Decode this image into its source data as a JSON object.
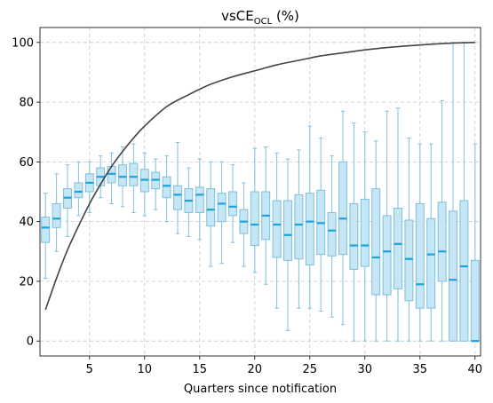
{
  "chart_data": {
    "type": "box",
    "title_main": "vsCE",
    "title_sub": "OCL",
    "title_unit": " (%)",
    "xlabel": "Quarters since notification",
    "ylabel": "",
    "xlim": [
      0.5,
      40.5
    ],
    "ylim": [
      -5,
      105
    ],
    "xticks": [
      5,
      10,
      15,
      20,
      25,
      30,
      35,
      40
    ],
    "yticks": [
      0,
      20,
      40,
      60,
      80,
      100
    ],
    "grid": true,
    "colors": {
      "box_fill": "#c5e6f5",
      "box_edge": "#7fbfdc",
      "median": "#1aa3e0",
      "curve": "#444444",
      "grid": "#c8c8c8"
    },
    "boxes": [
      {
        "x": 1,
        "whislo": 21,
        "q1": 33,
        "med": 38,
        "q3": 41.5,
        "whishi": 49.5
      },
      {
        "x": 2,
        "whislo": 30,
        "q1": 38,
        "med": 41,
        "q3": 46,
        "whishi": 56
      },
      {
        "x": 3,
        "whislo": 35,
        "q1": 44.5,
        "med": 48,
        "q3": 51,
        "whishi": 59
      },
      {
        "x": 4,
        "whislo": 42,
        "q1": 48,
        "med": 50,
        "q3": 53,
        "whishi": 60
      },
      {
        "x": 5,
        "whislo": 43,
        "q1": 50,
        "med": 53,
        "q3": 56,
        "whishi": 60
      },
      {
        "x": 6,
        "whislo": 48,
        "q1": 52,
        "med": 55,
        "q3": 58,
        "whishi": 62
      },
      {
        "x": 7,
        "whislo": 46,
        "q1": 53,
        "med": 56,
        "q3": 58.5,
        "whishi": 63
      },
      {
        "x": 8,
        "whislo": 45,
        "q1": 52,
        "med": 55,
        "q3": 59,
        "whishi": 65
      },
      {
        "x": 9,
        "whislo": 43,
        "q1": 52,
        "med": 55,
        "q3": 59.5,
        "whishi": 66
      },
      {
        "x": 10,
        "whislo": 42,
        "q1": 50,
        "med": 54,
        "q3": 57.5,
        "whishi": 63
      },
      {
        "x": 11,
        "whislo": 44,
        "q1": 51,
        "med": 54,
        "q3": 56.5,
        "whishi": 61
      },
      {
        "x": 12,
        "whislo": 40,
        "q1": 48,
        "med": 52,
        "q3": 55,
        "whishi": 62
      },
      {
        "x": 13,
        "whislo": 36,
        "q1": 44,
        "med": 49,
        "q3": 52,
        "whishi": 66.5
      },
      {
        "x": 14,
        "whislo": 35,
        "q1": 43,
        "med": 47,
        "q3": 51,
        "whishi": 58
      },
      {
        "x": 15,
        "whislo": 34,
        "q1": 43,
        "med": 49,
        "q3": 51.5,
        "whishi": 61
      },
      {
        "x": 16,
        "whislo": 25,
        "q1": 38.5,
        "med": 44,
        "q3": 51,
        "whishi": 60
      },
      {
        "x": 17,
        "whislo": 26,
        "q1": 40,
        "med": 46,
        "q3": 49.5,
        "whishi": 60
      },
      {
        "x": 18,
        "whislo": 33,
        "q1": 42,
        "med": 45,
        "q3": 50,
        "whishi": 59
      },
      {
        "x": 19,
        "whislo": 25,
        "q1": 36,
        "med": 40,
        "q3": 44,
        "whishi": 53
      },
      {
        "x": 20,
        "whislo": 23,
        "q1": 32,
        "med": 39,
        "q3": 50,
        "whishi": 64.5
      },
      {
        "x": 21,
        "whislo": 19,
        "q1": 34,
        "med": 42,
        "q3": 50,
        "whishi": 65
      },
      {
        "x": 22,
        "whislo": 11,
        "q1": 28,
        "med": 39,
        "q3": 47,
        "whishi": 63
      },
      {
        "x": 23,
        "whislo": 3.5,
        "q1": 27,
        "med": 35.5,
        "q3": 47,
        "whishi": 61
      },
      {
        "x": 24,
        "whislo": 11,
        "q1": 27.5,
        "med": 39,
        "q3": 49,
        "whishi": 64
      },
      {
        "x": 25,
        "whislo": 11,
        "q1": 25.5,
        "med": 40,
        "q3": 49.5,
        "whishi": 72
      },
      {
        "x": 26,
        "whislo": 10,
        "q1": 29,
        "med": 39.5,
        "q3": 50.5,
        "whishi": 68
      },
      {
        "x": 27,
        "whislo": 8,
        "q1": 28.5,
        "med": 37,
        "q3": 43,
        "whishi": 62
      },
      {
        "x": 28,
        "whislo": 5.5,
        "q1": 29,
        "med": 41,
        "q3": 60,
        "whishi": 77
      },
      {
        "x": 29,
        "whislo": 0,
        "q1": 24,
        "med": 32,
        "q3": 46,
        "whishi": 73
      },
      {
        "x": 30,
        "whislo": 0,
        "q1": 25,
        "med": 32,
        "q3": 47.5,
        "whishi": 70
      },
      {
        "x": 31,
        "whislo": 0,
        "q1": 15.5,
        "med": 28,
        "q3": 51,
        "whishi": 67
      },
      {
        "x": 32,
        "whislo": 0,
        "q1": 15.5,
        "med": 30,
        "q3": 42,
        "whishi": 77
      },
      {
        "x": 33,
        "whislo": 0,
        "q1": 17.5,
        "med": 32.5,
        "q3": 44.5,
        "whishi": 78
      },
      {
        "x": 34,
        "whislo": 0,
        "q1": 13.5,
        "med": 27.5,
        "q3": 40.5,
        "whishi": 68
      },
      {
        "x": 35,
        "whislo": 0,
        "q1": 11,
        "med": 19,
        "q3": 46,
        "whishi": 66
      },
      {
        "x": 36,
        "whislo": 0,
        "q1": 11,
        "med": 29,
        "q3": 41,
        "whishi": 66
      },
      {
        "x": 37,
        "whislo": 0,
        "q1": 20,
        "med": 30,
        "q3": 46.5,
        "whishi": 80.5
      },
      {
        "x": 38,
        "whislo": 0,
        "q1": 0,
        "med": 20.5,
        "q3": 43.5,
        "whishi": 100
      },
      {
        "x": 39,
        "whislo": 0,
        "q1": 0,
        "med": 25,
        "q3": 47,
        "whishi": 100
      },
      {
        "x": 40,
        "whislo": 0,
        "q1": 0,
        "med": 0,
        "q3": 27,
        "whishi": 66
      }
    ],
    "curve": {
      "x": [
        1,
        2,
        3,
        4,
        5,
        6,
        7,
        8,
        9,
        10,
        12,
        14,
        16,
        18,
        20,
        22,
        24,
        26,
        28,
        30,
        32,
        34,
        36,
        38,
        40
      ],
      "y": [
        10.5,
        21,
        30.5,
        38.5,
        46,
        52.5,
        58.5,
        63.5,
        68,
        72,
        78.5,
        82.5,
        86,
        88.5,
        90.5,
        92.5,
        94,
        95.5,
        96.5,
        97.5,
        98.3,
        98.9,
        99.4,
        99.8,
        100
      ]
    }
  }
}
